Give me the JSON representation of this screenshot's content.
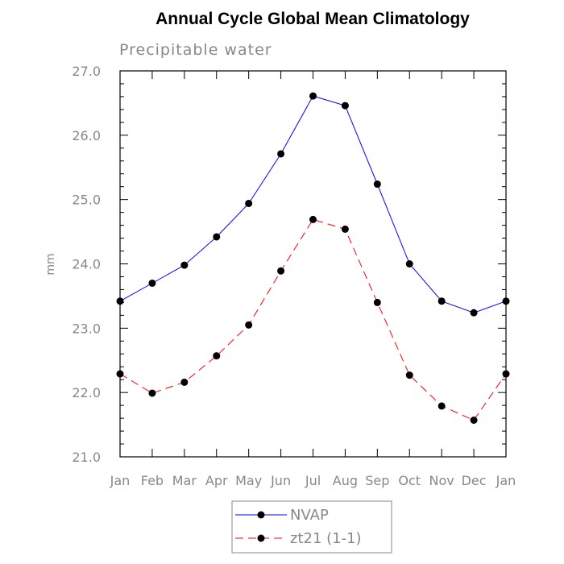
{
  "chart_data": {
    "type": "line",
    "title": "Annual Cycle Global Mean Climatology",
    "subtitle": "Precipitable water",
    "xlabel": "",
    "ylabel": "mm",
    "categories": [
      "Jan",
      "Feb",
      "Mar",
      "Apr",
      "May",
      "Jun",
      "Jul",
      "Aug",
      "Sep",
      "Oct",
      "Nov",
      "Dec",
      "Jan"
    ],
    "ylim": [
      21.0,
      27.0
    ],
    "yticks": [
      "21.0",
      "22.0",
      "23.0",
      "24.0",
      "25.0",
      "26.0",
      "27.0"
    ],
    "grid": false,
    "legend_position": "bottom",
    "series": [
      {
        "name": "NVAP",
        "color": "#0000ff",
        "dash": "solid",
        "marker": "filled-circle",
        "values": [
          23.42,
          23.7,
          23.98,
          24.42,
          24.94,
          25.71,
          26.61,
          26.46,
          25.24,
          24.0,
          23.42,
          23.24,
          23.42
        ]
      },
      {
        "name": "zt21 (1-1)",
        "color": "#ff0000",
        "dash": "dashed",
        "marker": "filled-circle",
        "values": [
          22.29,
          21.99,
          22.16,
          22.57,
          23.05,
          23.89,
          24.69,
          24.54,
          23.4,
          22.27,
          21.79,
          21.57,
          22.29
        ]
      }
    ]
  }
}
